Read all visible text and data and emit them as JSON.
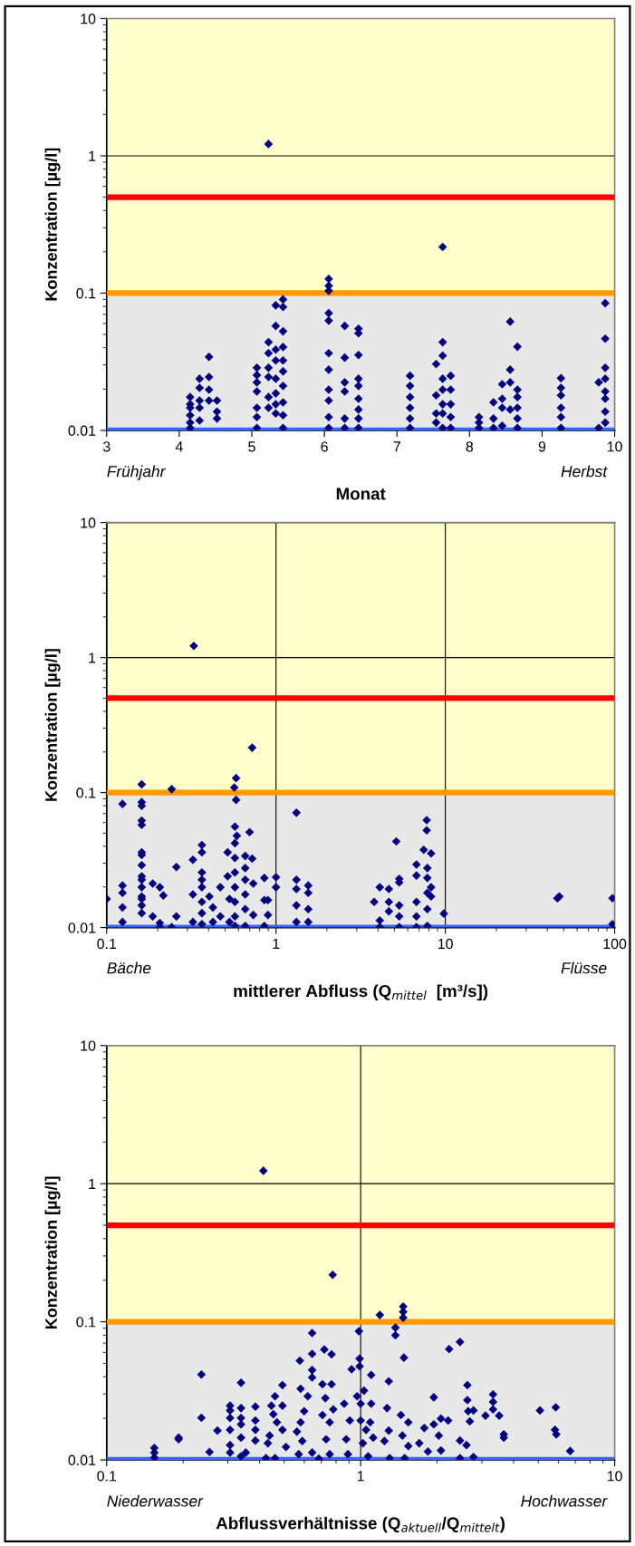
{
  "chart_data": [
    {
      "type": "scatter",
      "xlabel": "Monat",
      "ylabel": "Konzentration [µg/l]",
      "annotations": [
        "Frühjahr",
        "Herbst"
      ],
      "log": "y",
      "marker": "diamond",
      "xlim": [
        3,
        10
      ],
      "xticks": [
        3,
        4,
        5,
        6,
        7,
        8,
        9,
        10
      ],
      "ylim": [
        0.01,
        10
      ],
      "yticks": [
        0.01,
        0.1,
        1,
        10
      ],
      "bands": [
        {
          "axis": "y",
          "from": 0.01,
          "to": 0.1,
          "color": "#e8e8e8"
        },
        {
          "axis": "y",
          "from": 0.1,
          "to": 10,
          "color": "#ffffcc"
        }
      ],
      "ref_lines": [
        {
          "axis": "y",
          "value": 0.5,
          "color": "#ff0000"
        },
        {
          "axis": "y",
          "value": 0.1,
          "color": "#ff9900"
        },
        {
          "axis": "y",
          "value": 0.01,
          "color": "#3366ff"
        },
        {
          "axis": "y",
          "value": 1,
          "color": "#000000"
        }
      ],
      "series": [
        {
          "color": "#000080",
          "x": [
            4.15,
            4.15,
            4.15,
            4.15,
            4.15,
            4.15,
            4.28,
            4.28,
            4.28,
            4.28,
            4.28,
            4.41,
            4.41,
            4.41,
            4.41,
            4.52,
            4.52,
            4.52,
            5.07,
            5.07,
            5.07,
            5.07,
            5.07,
            5.07,
            5.07,
            5.23,
            5.23,
            5.23,
            5.23,
            5.23,
            5.23,
            5.23,
            5.33,
            5.33,
            5.33,
            5.33,
            5.33,
            5.33,
            5.33,
            5.33,
            5.43,
            5.43,
            5.43,
            5.43,
            5.43,
            5.43,
            5.43,
            5.43,
            5.43,
            5.43,
            6.06,
            6.06,
            6.06,
            6.06,
            6.06,
            6.06,
            6.06,
            6.06,
            6.06,
            6.06,
            6.06,
            6.28,
            6.28,
            6.28,
            6.28,
            6.28,
            6.28,
            6.47,
            6.47,
            6.47,
            6.47,
            6.47,
            6.47,
            6.47,
            6.47,
            6.47,
            7.18,
            7.18,
            7.18,
            7.18,
            7.18,
            7.18,
            7.54,
            7.54,
            7.54,
            7.54,
            7.63,
            7.63,
            7.63,
            7.63,
            7.63,
            7.63,
            7.63,
            7.63,
            7.74,
            7.74,
            7.74,
            7.74,
            7.74,
            8.13,
            8.13,
            8.13,
            8.33,
            8.33,
            8.33,
            8.45,
            8.45,
            8.45,
            8.45,
            8.56,
            8.56,
            8.56,
            8.56,
            8.66,
            8.66,
            8.66,
            8.66,
            8.66,
            8.66,
            9.26,
            9.26,
            9.26,
            9.26,
            9.26,
            9.26,
            9.78,
            9.78,
            9.87,
            9.87,
            9.87,
            9.87,
            9.87,
            9.87,
            9.87,
            9.87
          ],
          "values": [
            0.0175,
            0.0155,
            0.0146,
            0.0129,
            0.0114,
            0.0104,
            0.0238,
            0.0204,
            0.0165,
            0.0146,
            0.0118,
            0.0343,
            0.0245,
            0.0198,
            0.0165,
            0.0165,
            0.0137,
            0.0122,
            0.0286,
            0.0253,
            0.0224,
            0.0192,
            0.0146,
            0.0125,
            0.0104,
            1.22,
            0.0439,
            0.0365,
            0.0286,
            0.0245,
            0.0175,
            0.0146,
            0.0815,
            0.0577,
            0.0388,
            0.0323,
            0.0238,
            0.0186,
            0.0155,
            0.0133,
            0.09,
            0.0792,
            0.0527,
            0.0405,
            0.0323,
            0.0269,
            0.0211,
            0.016,
            0.0129,
            0.0104,
            0.127,
            0.113,
            0.104,
            0.0714,
            0.063,
            0.0365,
            0.0277,
            0.0198,
            0.0165,
            0.0125,
            0.0104,
            0.0577,
            0.0339,
            0.0224,
            0.0192,
            0.0122,
            0.0104,
            0.055,
            0.051,
            0.0354,
            0.0238,
            0.0211,
            0.017,
            0.0142,
            0.0122,
            0.0104,
            0.025,
            0.0211,
            0.0175,
            0.0146,
            0.0122,
            0.0104,
            0.0304,
            0.018,
            0.0133,
            0.0114,
            0.217,
            0.0439,
            0.035,
            0.0238,
            0.0198,
            0.0155,
            0.0133,
            0.0104,
            0.025,
            0.0198,
            0.0155,
            0.0125,
            0.0104,
            0.0125,
            0.0114,
            0.0104,
            0.016,
            0.0122,
            0.0104,
            0.0217,
            0.017,
            0.0146,
            0.0108,
            0.062,
            0.0277,
            0.0224,
            0.0142,
            0.0407,
            0.0198,
            0.0175,
            0.0146,
            0.0122,
            0.0104,
            0.024,
            0.0204,
            0.018,
            0.0146,
            0.0125,
            0.0104,
            0.0224,
            0.0104,
            0.0844,
            0.0466,
            0.0286,
            0.0238,
            0.0192,
            0.017,
            0.0137,
            0.0114
          ]
        }
      ]
    },
    {
      "type": "scatter",
      "xlabel": "mittlerer Abfluss (Q$_{mittel}$  [m³/s])",
      "ylabel": "Konzentration [µg/l]",
      "annotations": [
        "Bäche",
        "Flüsse"
      ],
      "log": "xy",
      "grid": true,
      "marker": "diamond",
      "xlim": [
        0.1,
        100
      ],
      "xticks": [
        0.1,
        1,
        10,
        100
      ],
      "ylim": [
        0.01,
        10
      ],
      "yticks": [
        0.01,
        0.1,
        1,
        10
      ],
      "bands": [
        {
          "axis": "y",
          "from": 0.01,
          "to": 0.1,
          "color": "#e8e8e8"
        },
        {
          "axis": "y",
          "from": 0.1,
          "to": 10,
          "color": "#ffffcc"
        }
      ],
      "ref_lines": [
        {
          "axis": "y",
          "value": 0.5,
          "color": "#ff0000"
        },
        {
          "axis": "y",
          "value": 0.1,
          "color": "#ff9900"
        },
        {
          "axis": "y",
          "value": 0.01,
          "color": "#3366ff"
        }
      ],
      "series": [
        {
          "color": "#000080",
          "x": [
            0.1,
            0.124,
            0.124,
            0.124,
            0.124,
            0.124,
            0.161,
            0.161,
            0.161,
            0.161,
            0.161,
            0.161,
            0.161,
            0.161,
            0.161,
            0.161,
            0.161,
            0.161,
            0.161,
            0.161,
            0.161,
            0.187,
            0.187,
            0.206,
            0.206,
            0.206,
            0.216,
            0.242,
            0.242,
            0.258,
            0.258,
            0.327,
            0.323,
            0.323,
            0.323,
            0.365,
            0.365,
            0.365,
            0.365,
            0.365,
            0.365,
            0.365,
            0.365,
            0.404,
            0.424,
            0.424,
            0.469,
            0.469,
            0.518,
            0.518,
            0.531,
            0.531,
            0.572,
            0.572,
            0.572,
            0.572,
            0.572,
            0.572,
            0.572,
            0.572,
            0.581,
            0.581,
            0.567,
            0.587,
            0.658,
            0.658,
            0.658,
            0.658,
            0.658,
            0.658,
            0.698,
            0.723,
            0.723,
            0.734,
            0.734,
            0.853,
            0.853,
            0.853,
            0.896,
            0.896,
            1.0,
            1.0,
            1.32,
            1.32,
            1.32,
            1.32,
            1.32,
            1.55,
            1.55,
            1.55,
            1.55,
            3.8,
            4.1,
            4.1,
            4.1,
            4.64,
            4.64,
            4.64,
            5.13,
            5.34,
            5.34,
            5.34,
            5.34,
            5.34,
            6.75,
            6.75,
            6.75,
            6.75,
            6.75,
            7.45,
            7.76,
            7.76,
            7.83,
            7.83,
            7.83,
            7.83,
            7.83,
            8.24,
            8.24,
            8.24,
            9.8,
            45.9,
            47.1,
            97.0,
            97.0
          ],
          "values": [
            0.0163,
            0.0824,
            0.0205,
            0.0181,
            0.0141,
            0.011,
            0.115,
            0.085,
            0.0798,
            0.0621,
            0.0577,
            0.0361,
            0.0345,
            0.029,
            0.024,
            0.0226,
            0.0199,
            0.017,
            0.0163,
            0.0146,
            0.0128,
            0.0212,
            0.0121,
            0.0199,
            0.0108,
            0.0101,
            0.0173,
            0.106,
            0.0101,
            0.0281,
            0.0121,
            1.22,
            0.0318,
            0.0176,
            0.011,
            0.0409,
            0.0361,
            0.0256,
            0.0226,
            0.0199,
            0.0155,
            0.0128,
            0.0106,
            0.017,
            0.0141,
            0.011,
            0.0199,
            0.0121,
            0.0361,
            0.024,
            0.0163,
            0.011,
            0.0559,
            0.0422,
            0.0328,
            0.0256,
            0.0199,
            0.0155,
            0.0121,
            0.0103,
            0.128,
            0.0883,
            0.109,
            0.0478,
            0.0339,
            0.0276,
            0.0226,
            0.0176,
            0.0137,
            0.0103,
            0.0509,
            0.215,
            0.0324,
            0.0212,
            0.0124,
            0.0233,
            0.016,
            0.0103,
            0.016,
            0.0124,
            0.0236,
            0.0199,
            0.0709,
            0.0226,
            0.0193,
            0.0146,
            0.011,
            0.0205,
            0.0181,
            0.0137,
            0.011,
            0.0155,
            0.0199,
            0.0113,
            0.0101,
            0.0193,
            0.0155,
            0.0132,
            0.0435,
            0.023,
            0.0216,
            0.0146,
            0.0121,
            0.0101,
            0.0293,
            0.0243,
            0.0155,
            0.0121,
            0.0101,
            0.0377,
            0.0625,
            0.0525,
            0.0276,
            0.0233,
            0.0181,
            0.0137,
            0.0103,
            0.0354,
            0.0199,
            0.017,
            0.0127,
            0.0165,
            0.017,
            0.0165,
            0.0106
          ]
        }
      ]
    },
    {
      "type": "scatter",
      "xlabel": "Abflussverhältnisse (Q$_{aktuell}$/Q$_{mittelt}$)",
      "ylabel": "Konzentration [µg/l]",
      "annotations": [
        "Niederwasser",
        "Hochwasser"
      ],
      "log": "xy",
      "grid": true,
      "marker": "diamond",
      "xlim": [
        0.1,
        10
      ],
      "xticks": [
        0.1,
        1,
        10
      ],
      "ylim": [
        0.01,
        10
      ],
      "yticks": [
        0.01,
        0.1,
        1,
        10
      ],
      "bands": [
        {
          "axis": "y",
          "from": 0.01,
          "to": 0.1,
          "color": "#e8e8e8"
        },
        {
          "axis": "y",
          "from": 0.1,
          "to": 10,
          "color": "#ffffcc"
        }
      ],
      "ref_lines": [
        {
          "axis": "y",
          "value": 0.5,
          "color": "#ff0000"
        },
        {
          "axis": "y",
          "value": 0.1,
          "color": "#ff9900"
        },
        {
          "axis": "y",
          "value": 0.01,
          "color": "#3366ff"
        }
      ],
      "series": [
        {
          "color": "#000080",
          "x": [
            0.414,
            0.776,
            1.19,
            1.47,
            1.47,
            1.47,
            1.37,
            1.37,
            0.984,
            0.644,
            1.48,
            2.23,
            2.46,
            0.236,
            0.236,
            0.273,
            0.254,
            0.192,
            0.192,
            0.154,
            0.154,
            0.154,
            0.338,
            0.306,
            0.306,
            0.306,
            0.306,
            0.306,
            0.306,
            0.338,
            0.338,
            0.338,
            0.338,
            0.338,
            0.353,
            0.385,
            0.385,
            0.385,
            0.385,
            0.445,
            0.453,
            0.46,
            0.492,
            0.492,
            0.492,
            0.468,
            0.438,
            0.431,
            0.424,
            0.46,
            0.508,
            0.576,
            0.644,
            0.644,
            0.644,
            0.644,
            0.58,
            0.58,
            0.619,
            0.599,
            0.561,
            0.589,
            0.57,
            0.684,
            0.719,
            0.768,
            0.768,
            0.707,
            0.707,
            0.726,
            0.755,
            0.755,
            0.731,
            0.78,
            0.861,
            0.906,
            0.877,
            0.891,
            0.921,
            0.99,
            0.99,
            0.968,
            1.03,
            1.0,
            1.0,
            1.05,
            1.02,
            1.07,
            1.1,
            1.1,
            1.09,
            1.12,
            1.29,
            1.29,
            1.27,
            1.24,
            1.3,
            1.44,
            1.54,
            1.54,
            1.46,
            1.49,
            1.7,
            1.78,
            1.94,
            1.94,
            1.84,
            2.07,
            2.07,
            2.03,
            2.21,
            2.46,
            2.46,
            2.63,
            2.63,
            2.65,
            2.69,
            2.78,
            2.78,
            2.61,
            3.1,
            3.32,
            3.32,
            3.32,
            3.51,
            3.66,
            3.66,
            5.08,
            5.86,
            5.82,
            5.89,
            6.68
          ],
          "values": [
            1.24,
            0.219,
            0.112,
            0.129,
            0.118,
            0.107,
            0.0906,
            0.0798,
            0.0855,
            0.0829,
            0.055,
            0.0634,
            0.0714,
            0.0415,
            0.0202,
            0.0163,
            0.0114,
            0.0145,
            0.0141,
            0.0122,
            0.0113,
            0.0104,
            0.0362,
            0.0247,
            0.0228,
            0.0201,
            0.0165,
            0.0128,
            0.0113,
            0.0237,
            0.0201,
            0.0181,
            0.0145,
            0.0106,
            0.0113,
            0.0243,
            0.0193,
            0.0165,
            0.0138,
            0.0247,
            0.0214,
            0.0289,
            0.0348,
            0.0247,
            0.0165,
            0.0187,
            0.015,
            0.0132,
            0.0103,
            0.0103,
            0.0124,
            0.0523,
            0.0585,
            0.0447,
            0.0395,
            0.0113,
            0.0327,
            0.0187,
            0.0289,
            0.0225,
            0.016,
            0.0137,
            0.011,
            0.0102,
            0.063,
            0.0581,
            0.0353,
            0.0353,
            0.0211,
            0.028,
            0.0187,
            0.011,
            0.0141,
            0.0232,
            0.0255,
            0.0193,
            0.0141,
            0.011,
            0.0453,
            0.0476,
            0.054,
            0.0289,
            0.0317,
            0.0255,
            0.0193,
            0.0165,
            0.0132,
            0.0106,
            0.0412,
            0.0255,
            0.0187,
            0.0145,
            0.0371,
            0.0163,
            0.0237,
            0.0137,
            0.0103,
            0.0211,
            0.0187,
            0.0126,
            0.015,
            0.0103,
            0.0132,
            0.017,
            0.0284,
            0.0181,
            0.0115,
            0.0199,
            0.0117,
            0.015,
            0.0193,
            0.0138,
            0.0103,
            0.0348,
            0.0271,
            0.0225,
            0.019,
            0.0228,
            0.0105,
            0.0128,
            0.0209,
            0.0298,
            0.0263,
            0.0232,
            0.0209,
            0.0153,
            0.0145,
            0.0228,
            0.024,
            0.0165,
            0.0153,
            0.0116
          ]
        }
      ]
    }
  ]
}
